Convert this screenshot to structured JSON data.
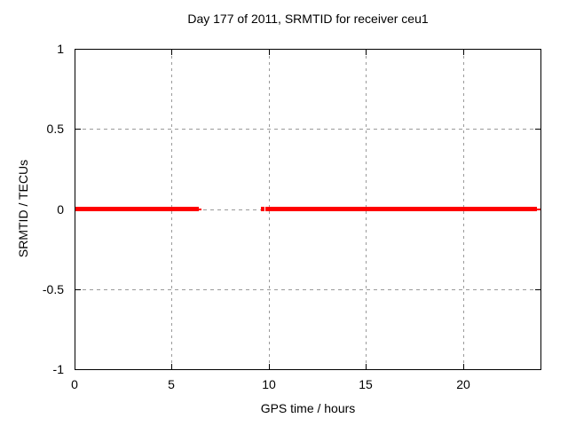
{
  "chart_data": {
    "type": "line",
    "title": "Day 177 of 2011, SRMTID for receiver ceu1",
    "xlabel": "GPS time / hours",
    "ylabel": "SRMTID / TECUs",
    "xlim": [
      0,
      24
    ],
    "ylim": [
      -1,
      1
    ],
    "grid": true,
    "legend": "none",
    "xticks": [
      {
        "value": 0,
        "label": "0"
      },
      {
        "value": 5,
        "label": "5"
      },
      {
        "value": 10,
        "label": "10"
      },
      {
        "value": 15,
        "label": "15"
      },
      {
        "value": 20,
        "label": "20"
      }
    ],
    "yticks": [
      {
        "value": 1,
        "label": "1"
      },
      {
        "value": 0.5,
        "label": "0.5"
      },
      {
        "value": 0,
        "label": "0"
      },
      {
        "value": -0.5,
        "label": "-0.5"
      },
      {
        "value": -1,
        "label": "-1"
      }
    ],
    "series": [
      {
        "name": "SRMTID",
        "color": "#ff0000",
        "y_value": 0,
        "segments": [
          {
            "x_start": 0.0,
            "x_end": 6.42,
            "thin": false
          },
          {
            "x_start": 6.42,
            "x_end": 6.55,
            "thin": true
          },
          {
            "x_start": 9.6,
            "x_end": 9.79,
            "thin": false
          },
          {
            "x_start": 9.85,
            "x_end": 23.82,
            "thin": false
          },
          {
            "x_start": 23.82,
            "x_end": 24.0,
            "thin": true
          }
        ]
      }
    ],
    "colors": {
      "line": "#ff0000",
      "grid": "#9a9a9a",
      "axis": "#000000",
      "background": "#ffffff"
    }
  }
}
